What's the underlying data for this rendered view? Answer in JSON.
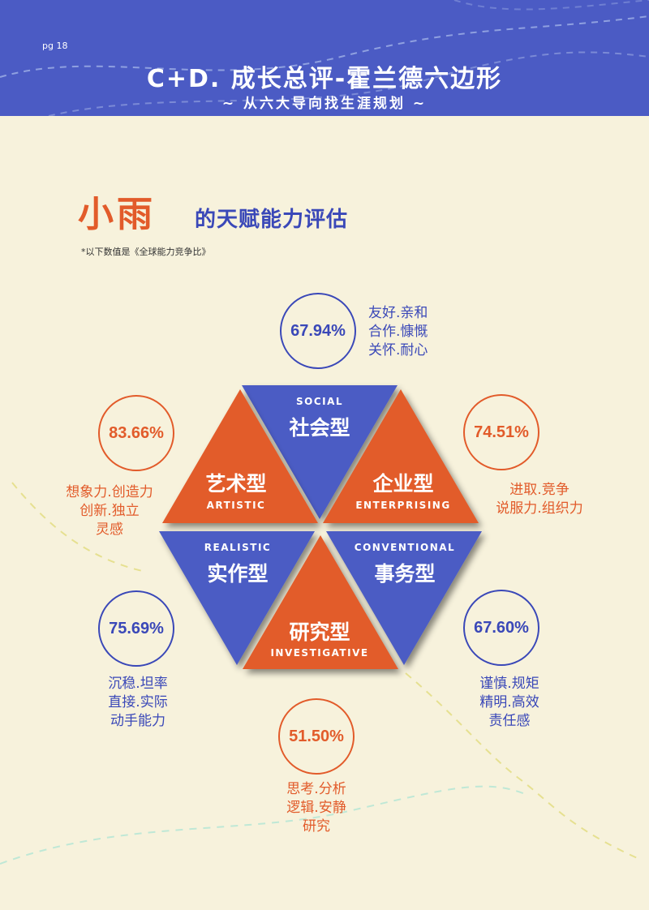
{
  "header": {
    "page_no": "pg 18",
    "title": "C+D. 成长总评-霍兰德六边形",
    "subtitle": "~ 从六大导向找生涯规划 ~"
  },
  "heading": {
    "name": "小雨",
    "rest": "的天赋能力评估",
    "note": "*以下数值是《全球能力竞争比》"
  },
  "colors": {
    "blue": "#4b5bc4",
    "orange": "#e25b2a",
    "background": "#f7f2dc"
  },
  "types": {
    "social": {
      "cn": "社会型",
      "en": "SOCIAL",
      "score": "67.94%",
      "traits": [
        "友好.亲和",
        "合作.慷慨",
        "关怀.耐心"
      ],
      "color": "blue"
    },
    "enterprising": {
      "cn": "企业型",
      "en": "ENTERPRISING",
      "score": "74.51%",
      "traits": [
        "进取.竞争",
        "说服力.组织力"
      ],
      "color": "orange"
    },
    "conventional": {
      "cn": "事务型",
      "en": "CONVENTIONAL",
      "score": "67.60%",
      "traits": [
        "谨慎.规矩",
        "精明.高效",
        "责任感"
      ],
      "color": "blue"
    },
    "investigative": {
      "cn": "研究型",
      "en": "INVESTIGATIVE",
      "score": "51.50%",
      "traits": [
        "思考.分析",
        "逻辑.安静",
        "研究"
      ],
      "color": "orange"
    },
    "realistic": {
      "cn": "实作型",
      "en": "REALISTIC",
      "score": "75.69%",
      "traits": [
        "沉稳.坦率",
        "直接.实际",
        "动手能力"
      ],
      "color": "blue"
    },
    "artistic": {
      "cn": "艺术型",
      "en": "ARTISTIC",
      "score": "83.66%",
      "traits": [
        "想象力.创造力",
        "创新.独立",
        "灵感"
      ],
      "color": "orange"
    }
  }
}
